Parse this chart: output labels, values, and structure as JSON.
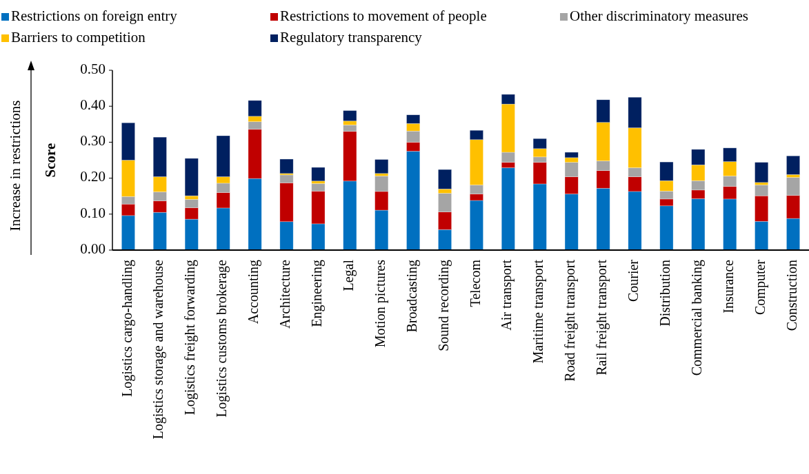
{
  "chart_data": {
    "type": "bar",
    "stacked": true,
    "ylabel": "Score",
    "annotations": [
      "Increase in restrictions"
    ],
    "categories": [
      "Logistics cargo-handling",
      "Logistics storage and warehouse",
      "Logistics freight forwarding",
      "Logistics customs brokerage",
      "Accounting",
      "Architecture",
      "Engineering",
      "Legal",
      "Motion pictures",
      "Broadcasting",
      "Sound recording",
      "Telecom",
      "Air transport",
      "Maritime transport",
      "Road freight transport",
      "Rail freight transport",
      "Courier",
      "Distribution",
      "Commercial banking",
      "Insurance",
      "Computer",
      "Construction"
    ],
    "series": [
      {
        "name": "Restrictions on foreign entry",
        "color": "#0070c0",
        "values": [
          0.096,
          0.105,
          0.086,
          0.117,
          0.199,
          0.079,
          0.073,
          0.192,
          0.111,
          0.275,
          0.057,
          0.138,
          0.229,
          0.184,
          0.156,
          0.172,
          0.163,
          0.123,
          0.143,
          0.142,
          0.08,
          0.088
        ]
      },
      {
        "name": "Restrictions to movement of people",
        "color": "#c00000",
        "values": [
          0.032,
          0.032,
          0.032,
          0.043,
          0.137,
          0.108,
          0.091,
          0.138,
          0.052,
          0.025,
          0.049,
          0.018,
          0.015,
          0.06,
          0.048,
          0.049,
          0.041,
          0.019,
          0.024,
          0.035,
          0.071,
          0.064
        ]
      },
      {
        "name": "Other discriminatory measures",
        "color": "#a5a5a5",
        "values": [
          0.021,
          0.025,
          0.023,
          0.026,
          0.021,
          0.022,
          0.021,
          0.018,
          0.043,
          0.031,
          0.052,
          0.025,
          0.028,
          0.015,
          0.04,
          0.027,
          0.025,
          0.022,
          0.026,
          0.029,
          0.03,
          0.05
        ]
      },
      {
        "name": "Barriers to competition",
        "color": "#ffc000",
        "values": [
          0.101,
          0.042,
          0.01,
          0.018,
          0.015,
          0.004,
          0.007,
          0.011,
          0.007,
          0.021,
          0.012,
          0.126,
          0.134,
          0.023,
          0.013,
          0.107,
          0.111,
          0.029,
          0.044,
          0.04,
          0.007,
          0.008
        ]
      },
      {
        "name": "Regulatory transparency",
        "color": "#002060",
        "values": [
          0.104,
          0.11,
          0.104,
          0.114,
          0.044,
          0.04,
          0.038,
          0.029,
          0.039,
          0.024,
          0.054,
          0.026,
          0.027,
          0.028,
          0.015,
          0.063,
          0.085,
          0.052,
          0.043,
          0.038,
          0.056,
          0.052
        ]
      }
    ],
    "ylim": [
      0,
      0.5
    ],
    "yticks": [
      {
        "value": 0,
        "label": "0.00"
      },
      {
        "value": 0.1,
        "label": "0.10"
      },
      {
        "value": 0.2,
        "label": "0.20"
      },
      {
        "value": 0.3,
        "label": "0.30"
      },
      {
        "value": 0.4,
        "label": "0.40"
      },
      {
        "value": 0.5,
        "label": "0.50"
      }
    ],
    "legend": "top left",
    "grid": false
  }
}
